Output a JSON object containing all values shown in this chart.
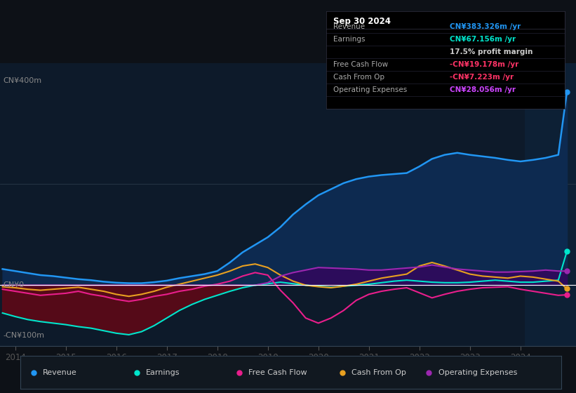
{
  "bg_color": "#0d1117",
  "plot_bg_color": "#0d1a2a",
  "shaded_bg_color": "#0d2035",
  "ylim": [
    -120,
    440
  ],
  "xlim_start": 2013.7,
  "xlim_end": 2025.1,
  "x_ticks": [
    2014,
    2015,
    2016,
    2017,
    2018,
    2019,
    2020,
    2021,
    2022,
    2023,
    2024
  ],
  "zero_line_color": "#ffffff",
  "grid_line_color": "#2a3a4a",
  "shaded_x_start": 2024.08,
  "tooltip": {
    "date": "Sep 30 2024",
    "rows": [
      {
        "label": "Revenue",
        "value": "CN¥383.326m /yr",
        "value_color": "#2196f3"
      },
      {
        "label": "Earnings",
        "value": "CN¥67.156m /yr",
        "value_color": "#00e5cc"
      },
      {
        "label": "",
        "value": "17.5% profit margin",
        "value_color": "#cccccc"
      },
      {
        "label": "Free Cash Flow",
        "value": "-CN¥19.178m /yr",
        "value_color": "#ff3366"
      },
      {
        "label": "Cash From Op",
        "value": "-CN¥7.223m /yr",
        "value_color": "#ff3366"
      },
      {
        "label": "Operating Expenses",
        "value": "CN¥28.056m /yr",
        "value_color": "#cc44ff"
      }
    ]
  },
  "legend": [
    {
      "label": "Revenue",
      "color": "#2196f3"
    },
    {
      "label": "Earnings",
      "color": "#00e5cc"
    },
    {
      "label": "Free Cash Flow",
      "color": "#e91e8c"
    },
    {
      "label": "Cash From Op",
      "color": "#e8a020"
    },
    {
      "label": "Operating Expenses",
      "color": "#9c27b0"
    }
  ],
  "revenue_x": [
    2013.75,
    2014.0,
    2014.25,
    2014.5,
    2014.75,
    2015.0,
    2015.25,
    2015.5,
    2015.75,
    2016.0,
    2016.25,
    2016.5,
    2016.75,
    2017.0,
    2017.25,
    2017.5,
    2017.75,
    2018.0,
    2018.25,
    2018.5,
    2018.75,
    2019.0,
    2019.25,
    2019.5,
    2019.75,
    2020.0,
    2020.25,
    2020.5,
    2020.75,
    2021.0,
    2021.25,
    2021.5,
    2021.75,
    2022.0,
    2022.25,
    2022.5,
    2022.75,
    2023.0,
    2023.25,
    2023.5,
    2023.75,
    2024.0,
    2024.25,
    2024.5,
    2024.75,
    2024.92
  ],
  "revenue_y": [
    32,
    28,
    24,
    20,
    18,
    15,
    12,
    10,
    7,
    5,
    4,
    4,
    6,
    9,
    14,
    18,
    22,
    28,
    45,
    65,
    80,
    95,
    115,
    140,
    160,
    178,
    190,
    202,
    210,
    215,
    218,
    220,
    222,
    235,
    250,
    258,
    262,
    258,
    255,
    252,
    248,
    245,
    248,
    252,
    258,
    383
  ],
  "earnings_x": [
    2013.75,
    2014.0,
    2014.25,
    2014.5,
    2014.75,
    2015.0,
    2015.25,
    2015.5,
    2015.75,
    2016.0,
    2016.25,
    2016.5,
    2016.75,
    2017.0,
    2017.25,
    2017.5,
    2017.75,
    2018.0,
    2018.25,
    2018.5,
    2018.75,
    2019.0,
    2019.25,
    2019.5,
    2019.75,
    2020.0,
    2020.25,
    2020.5,
    2020.75,
    2021.0,
    2021.25,
    2021.5,
    2021.75,
    2022.0,
    2022.25,
    2022.5,
    2022.75,
    2023.0,
    2023.25,
    2023.5,
    2023.75,
    2024.0,
    2024.25,
    2024.5,
    2024.75,
    2024.92
  ],
  "earnings_y": [
    -55,
    -62,
    -68,
    -72,
    -75,
    -78,
    -82,
    -85,
    -90,
    -95,
    -98,
    -92,
    -80,
    -65,
    -50,
    -38,
    -28,
    -20,
    -12,
    -5,
    0,
    3,
    6,
    3,
    0,
    -2,
    -4,
    -2,
    0,
    2,
    5,
    8,
    10,
    8,
    6,
    5,
    5,
    6,
    8,
    10,
    8,
    6,
    6,
    8,
    10,
    67
  ],
  "fcf_x": [
    2013.75,
    2014.0,
    2014.25,
    2014.5,
    2014.75,
    2015.0,
    2015.25,
    2015.5,
    2015.75,
    2016.0,
    2016.25,
    2016.5,
    2016.75,
    2017.0,
    2017.25,
    2017.5,
    2017.75,
    2018.0,
    2018.25,
    2018.5,
    2018.75,
    2019.0,
    2019.25,
    2019.5,
    2019.75,
    2020.0,
    2020.25,
    2020.5,
    2020.75,
    2021.0,
    2021.25,
    2021.5,
    2021.75,
    2022.0,
    2022.25,
    2022.5,
    2022.75,
    2023.0,
    2023.25,
    2023.5,
    2023.75,
    2024.0,
    2024.25,
    2024.5,
    2024.75,
    2024.92
  ],
  "fcf_y": [
    -8,
    -12,
    -16,
    -20,
    -18,
    -16,
    -12,
    -18,
    -22,
    -28,
    -32,
    -28,
    -22,
    -18,
    -12,
    -8,
    -2,
    2,
    8,
    18,
    25,
    20,
    -10,
    -35,
    -65,
    -75,
    -65,
    -50,
    -30,
    -18,
    -12,
    -8,
    -5,
    -15,
    -25,
    -18,
    -12,
    -8,
    -5,
    -4,
    -3,
    -8,
    -12,
    -16,
    -20,
    -19
  ],
  "cop_x": [
    2013.75,
    2014.0,
    2014.25,
    2014.5,
    2014.75,
    2015.0,
    2015.25,
    2015.5,
    2015.75,
    2016.0,
    2016.25,
    2016.5,
    2016.75,
    2017.0,
    2017.25,
    2017.5,
    2017.75,
    2018.0,
    2018.25,
    2018.5,
    2018.75,
    2019.0,
    2019.25,
    2019.5,
    2019.75,
    2020.0,
    2020.25,
    2020.5,
    2020.75,
    2021.0,
    2021.25,
    2021.5,
    2021.75,
    2022.0,
    2022.25,
    2022.5,
    2022.75,
    2023.0,
    2023.25,
    2023.5,
    2023.75,
    2024.0,
    2024.25,
    2024.5,
    2024.75,
    2024.92
  ],
  "cop_y": [
    -3,
    -5,
    -8,
    -10,
    -8,
    -6,
    -4,
    -8,
    -12,
    -18,
    -22,
    -18,
    -12,
    -4,
    2,
    8,
    14,
    20,
    28,
    38,
    42,
    35,
    20,
    8,
    0,
    -3,
    -5,
    -2,
    2,
    8,
    14,
    18,
    22,
    38,
    45,
    38,
    30,
    22,
    18,
    16,
    14,
    18,
    16,
    12,
    8,
    -7
  ],
  "opex_x": [
    2013.75,
    2014.0,
    2014.25,
    2014.5,
    2014.75,
    2015.0,
    2015.25,
    2015.5,
    2015.75,
    2016.0,
    2016.25,
    2016.5,
    2016.75,
    2017.0,
    2017.25,
    2017.5,
    2017.75,
    2018.0,
    2018.25,
    2018.5,
    2018.75,
    2019.0,
    2019.25,
    2019.5,
    2019.75,
    2020.0,
    2020.25,
    2020.5,
    2020.75,
    2021.0,
    2021.25,
    2021.5,
    2021.75,
    2022.0,
    2022.25,
    2022.5,
    2022.75,
    2023.0,
    2023.25,
    2023.5,
    2023.75,
    2024.0,
    2024.25,
    2024.5,
    2024.75,
    2024.92
  ],
  "opex_y": [
    0,
    0,
    0,
    0,
    0,
    0,
    0,
    0,
    0,
    0,
    0,
    0,
    0,
    0,
    0,
    0,
    0,
    0,
    0,
    0,
    0,
    5,
    18,
    25,
    30,
    35,
    34,
    33,
    32,
    30,
    30,
    32,
    34,
    36,
    40,
    36,
    32,
    30,
    28,
    26,
    26,
    27,
    28,
    30,
    28,
    28
  ]
}
